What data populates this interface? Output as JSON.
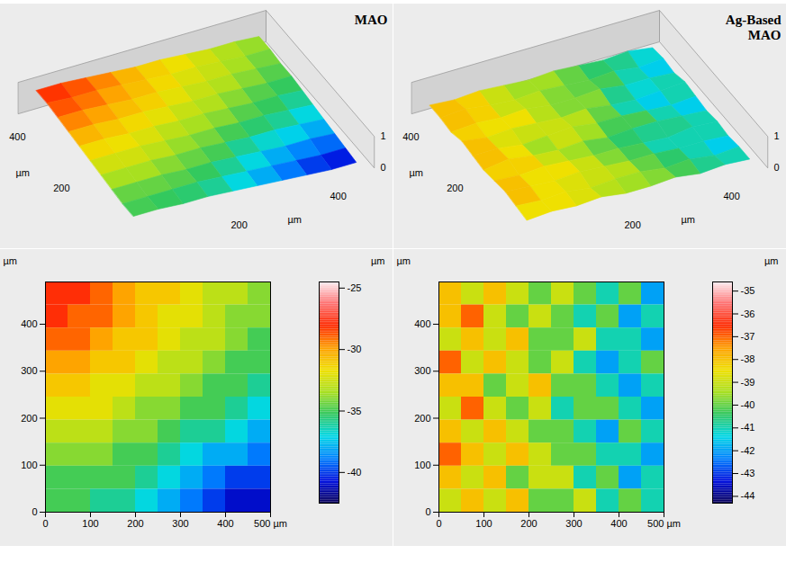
{
  "chart_data": [
    {
      "type": "heatmap",
      "title": "MAO",
      "xlim": [
        0,
        500
      ],
      "xticks": [
        0,
        100,
        200,
        300,
        400,
        {
          "value": 500,
          "label": "500 µm"
        }
      ],
      "ylim": [
        0,
        490
      ],
      "yticks": [
        0,
        100,
        200,
        300,
        400
      ],
      "ylabel": "µm",
      "cells": [
        [
          -28,
          -28,
          -29,
          -30,
          -31,
          -31,
          -32,
          -33,
          -33,
          -34
        ],
        [
          -28,
          -29,
          -29,
          -30,
          -31,
          -32,
          -32,
          -33,
          -34,
          -34
        ],
        [
          -29,
          -29,
          -30,
          -31,
          -31,
          -32,
          -33,
          -33,
          -34,
          -35
        ],
        [
          -30,
          -30,
          -31,
          -31,
          -32,
          -33,
          -33,
          -34,
          -35,
          -35
        ],
        [
          -31,
          -31,
          -32,
          -32,
          -33,
          -33,
          -34,
          -35,
          -35,
          -36
        ],
        [
          -32,
          -32,
          -32,
          -33,
          -34,
          -34,
          -35,
          -35,
          -36,
          -37
        ],
        [
          -33,
          -33,
          -33,
          -34,
          -34,
          -35,
          -36,
          -36,
          -37,
          -38
        ],
        [
          -34,
          -34,
          -34,
          -35,
          -35,
          -36,
          -37,
          -38,
          -38,
          -39
        ],
        [
          -35,
          -35,
          -35,
          -35,
          -36,
          -37,
          -38,
          -39,
          -40,
          -40
        ],
        [
          -35,
          -35,
          -36,
          -36,
          -37,
          -38,
          -39,
          -40,
          -41,
          -41
        ]
      ],
      "colorbar": {
        "label": "µm",
        "range": [
          -42.5,
          -24.5
        ],
        "ticks": [
          -25,
          -30,
          -35,
          -40
        ]
      },
      "surface": {
        "type": "surface",
        "xticks": [
          200,
          400
        ],
        "xlabel": "µm",
        "yticks": [
          200,
          400
        ],
        "ylabel": "µm",
        "zticks": [
          0,
          1
        ]
      }
    },
    {
      "type": "heatmap",
      "title": "Ag-Based MAO",
      "xlim": [
        0,
        500
      ],
      "xticks": [
        0,
        100,
        200,
        300,
        400,
        {
          "value": 500,
          "label": "500 µm"
        }
      ],
      "ylim": [
        0,
        490
      ],
      "yticks": [
        0,
        100,
        200,
        300,
        400
      ],
      "ylabel": "µm",
      "cells": [
        [
          -38,
          -39,
          -38,
          -39,
          -40,
          -39,
          -40,
          -41,
          -40,
          -42
        ],
        [
          -38,
          -37,
          -39,
          -40,
          -39,
          -40,
          -41,
          -40,
          -42,
          -41
        ],
        [
          -39,
          -38,
          -39,
          -38,
          -40,
          -40,
          -39,
          -41,
          -41,
          -42
        ],
        [
          -37,
          -39,
          -38,
          -39,
          -40,
          -39,
          -41,
          -42,
          -41,
          -40
        ],
        [
          -38,
          -38,
          -40,
          -39,
          -38,
          -40,
          -40,
          -41,
          -42,
          -41
        ],
        [
          -39,
          -37,
          -39,
          -40,
          -39,
          -41,
          -40,
          -40,
          -41,
          -42
        ],
        [
          -38,
          -39,
          -38,
          -39,
          -40,
          -40,
          -41,
          -42,
          -40,
          -41
        ],
        [
          -37,
          -38,
          -39,
          -38,
          -39,
          -40,
          -40,
          -41,
          -41,
          -42
        ],
        [
          -38,
          -39,
          -38,
          -40,
          -39,
          -39,
          -41,
          -40,
          -42,
          -41
        ],
        [
          -39,
          -38,
          -39,
          -38,
          -40,
          -40,
          -39,
          -41,
          -40,
          -41
        ]
      ],
      "colorbar": {
        "label": "µm",
        "range": [
          -44.3,
          -34.6
        ],
        "ticks": [
          -35,
          -36,
          -37,
          -38,
          -39,
          -40,
          -41,
          -42,
          -43,
          -44
        ]
      },
      "surface": {
        "type": "surface",
        "xticks": [
          200,
          400
        ],
        "xlabel": "µm",
        "yticks": [
          200,
          400
        ],
        "ylabel": "µm",
        "zticks": [
          0,
          1
        ]
      }
    }
  ]
}
